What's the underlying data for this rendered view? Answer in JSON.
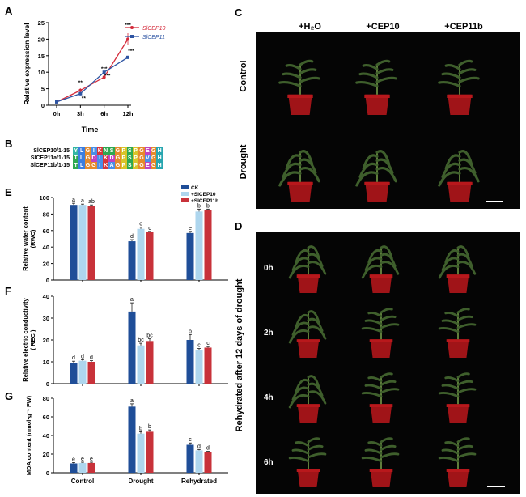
{
  "panels": {
    "A": "A",
    "B": "B",
    "C": "C",
    "D": "D",
    "E": "E",
    "F": "F",
    "G": "G"
  },
  "colors": {
    "sicep10_line": "#d42a3a",
    "sicep11_line": "#2e55a3",
    "ck": "#1f4e98",
    "sicep10_bar": "#aed6ee",
    "sicep11b_bar": "#c8323a"
  },
  "panel_C": {
    "col_headers": [
      "+H₂O",
      "+CEP10",
      "+CEP11b"
    ],
    "row_labels": [
      "Control",
      "Drought"
    ]
  },
  "panel_D": {
    "side_label": "Rehydrated after 12 days of drought",
    "times": [
      "0h",
      "2h",
      "4h",
      "6h"
    ]
  },
  "panel_B": {
    "rows": [
      {
        "name": "SlCEP10/1-15",
        "seq": "YLGIKNSGPSPGEGH"
      },
      {
        "name": "SlCEP11a/1-15",
        "seq": "TLGDIKDGPSPGVGH"
      },
      {
        "name": "SlCEP11b/1-15",
        "seq": "TLGGIKAGPSPGEGH"
      }
    ],
    "aa_colors": {
      "Y": "#33b6a3",
      "L": "#3c7ee0",
      "G": "#e58a2b",
      "I": "#4a8ee8",
      "K": "#d8343a",
      "N": "#2ea850",
      "S": "#2ea850",
      "P": "#d8c42a",
      "E": "#c042c0",
      "H": "#28a6b0",
      "T": "#2ea850",
      "D": "#c042c0",
      "V": "#4a8ee8",
      "A": "#4a8ee8"
    }
  },
  "chart_data": [
    {
      "id": "A",
      "type": "line",
      "ylabel": "Relative expression level",
      "xlabel": "Time",
      "categories": [
        "0h",
        "3h",
        "6h",
        "12h"
      ],
      "ylim": [
        0,
        25
      ],
      "yticks": [
        0,
        5,
        10,
        15,
        20,
        25
      ],
      "legend": "top-right",
      "series": [
        {
          "name": "SlCEP10",
          "values": [
            1,
            4.5,
            8.5,
            20
          ],
          "errors": [
            0.2,
            0.6,
            0.8,
            1.8
          ],
          "sig": [
            "",
            "**",
            "***",
            "***"
          ]
        },
        {
          "name": "SlCEP11",
          "values": [
            1,
            3.5,
            10,
            14.5
          ],
          "errors": [
            0.2,
            0.5,
            0.9,
            0.5
          ],
          "sig": [
            "",
            "**",
            "***",
            "***"
          ]
        }
      ]
    },
    {
      "id": "E",
      "type": "bar",
      "ylabel": "Relative water content\n(RWC)",
      "categories": [
        "Control",
        "Drought",
        "Rehydrated"
      ],
      "ylim": [
        0,
        100
      ],
      "yticks": [
        0,
        20,
        40,
        60,
        80,
        100
      ],
      "legend": "top-right",
      "series": [
        {
          "name": "CK",
          "values": [
            91,
            47,
            57
          ],
          "errors": [
            2,
            2,
            2
          ],
          "letters": [
            "a",
            "d",
            "e"
          ]
        },
        {
          "name": "+SlCEP10",
          "values": [
            91,
            62,
            83
          ],
          "errors": [
            1,
            2,
            3
          ],
          "letters": [
            "a",
            "c",
            "b"
          ]
        },
        {
          "name": "+SlCEP11b",
          "values": [
            90,
            58,
            85
          ],
          "errors": [
            1,
            1,
            1
          ],
          "letters": [
            "ab",
            "c",
            "b"
          ]
        }
      ]
    },
    {
      "id": "F",
      "type": "bar",
      "ylabel": "Relative electric conductivity\n( REC )",
      "categories": [
        "Control",
        "Drought",
        "Rehydrated"
      ],
      "ylim": [
        0,
        40
      ],
      "yticks": [
        0,
        10,
        20,
        30,
        40
      ],
      "series": [
        {
          "name": "CK",
          "values": [
            9.5,
            33,
            20
          ],
          "errors": [
            0.8,
            4,
            2.5
          ],
          "letters": [
            "d",
            "a",
            "b"
          ]
        },
        {
          "name": "+SlCEP10",
          "values": [
            10.5,
            17.5,
            15.5
          ],
          "errors": [
            0.5,
            1,
            0.6
          ],
          "letters": [
            "d",
            "bc",
            "c"
          ]
        },
        {
          "name": "+SlCEP11b",
          "values": [
            10,
            19.5,
            16.5
          ],
          "errors": [
            0.5,
            1,
            0.5
          ],
          "letters": [
            "d",
            "bc",
            "c"
          ]
        }
      ]
    },
    {
      "id": "G",
      "type": "bar",
      "ylabel": "MDA content (nmol·g⁻¹ FW)",
      "categories": [
        "Control",
        "Drought",
        "Rehydrated"
      ],
      "ylim": [
        0,
        80
      ],
      "yticks": [
        0,
        20,
        40,
        60,
        80
      ],
      "series": [
        {
          "name": "CK",
          "values": [
            10,
            71,
            30
          ],
          "errors": [
            1,
            3,
            2
          ],
          "letters": [
            "e",
            "a",
            "c"
          ]
        },
        {
          "name": "+SlCEP10",
          "values": [
            10.5,
            42,
            24
          ],
          "errors": [
            0.8,
            2,
            1
          ],
          "letters": [
            "e",
            "b",
            "d"
          ]
        },
        {
          "name": "+SlCEP11b",
          "values": [
            10.5,
            44,
            22
          ],
          "errors": [
            0.8,
            2,
            1
          ],
          "letters": [
            "e",
            "b",
            "d"
          ]
        }
      ]
    }
  ]
}
